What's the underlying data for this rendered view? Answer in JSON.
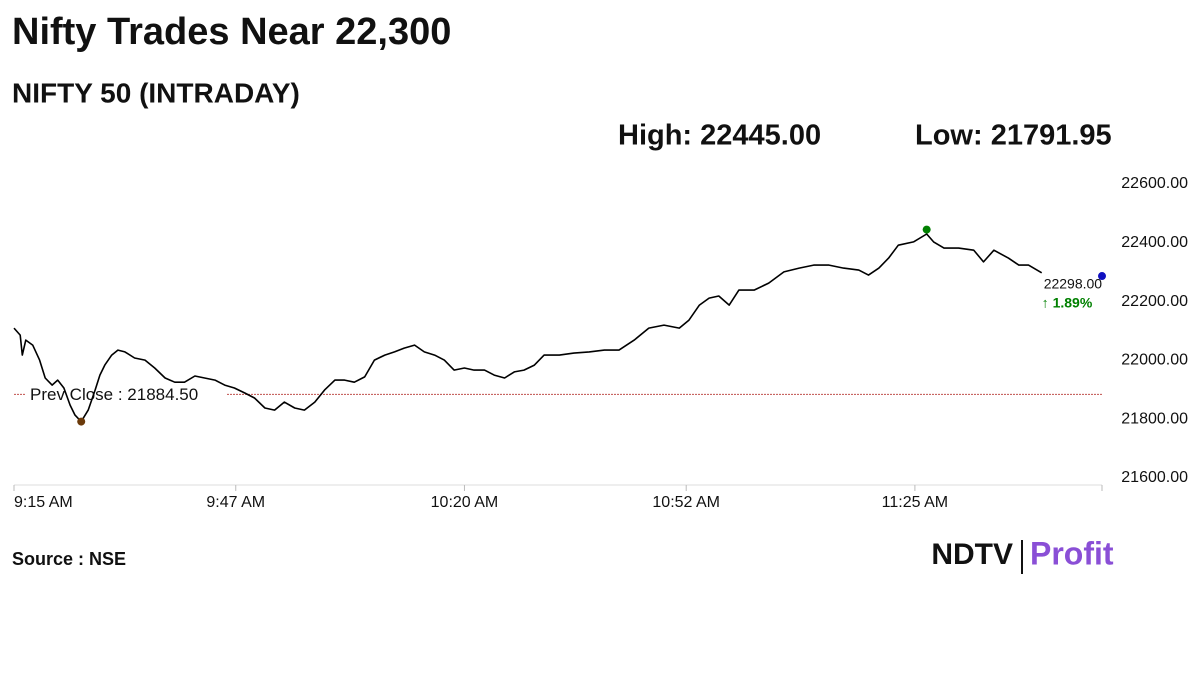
{
  "chart_data": {
    "type": "line",
    "title": "Nifty Trades Near 22,300",
    "subtitle": "NIFTY 50 (INTRADAY)",
    "high_label": "High: 22445.00",
    "low_label": "Low: 21791.95",
    "source": "Source : NSE",
    "logo": {
      "left": "NDTV",
      "right": "Profit"
    },
    "series": [
      {
        "name": "NIFTY 50",
        "color": "#000000",
        "x": [
          555.0,
          555.9,
          556.2,
          556.7,
          557.7,
          558.7,
          559.5,
          560.5,
          561.3,
          562.2,
          563.1,
          563.8,
          564.7,
          565.7,
          566.7,
          567.4,
          568.1,
          569.1,
          570.0,
          571.0,
          572.4,
          573.9,
          575.3,
          576.8,
          578.2,
          579.6,
          581.1,
          582.5,
          584.0,
          585.4,
          586.8,
          588.3,
          589.7,
          591.2,
          592.6,
          594.0,
          595.5,
          596.9,
          598.4,
          599.8,
          601.3,
          602.7,
          604.1,
          605.6,
          607.0,
          608.5,
          609.9,
          611.3,
          612.8,
          614.2,
          615.7,
          617.1,
          618.5,
          620.0,
          621.4,
          622.9,
          624.3,
          625.8,
          627.2,
          628.6,
          630.1,
          631.5,
          633.7,
          635.8,
          638.0,
          640.2,
          642.3,
          644.5,
          646.6,
          648.8,
          651.0,
          652.4,
          653.9,
          655.3,
          656.7,
          658.2,
          659.6,
          661.8,
          663.9,
          666.1,
          668.3,
          670.4,
          672.6,
          674.7,
          676.9,
          678.3,
          679.8,
          681.2,
          682.6,
          684.8,
          686.7,
          687.7,
          689.2,
          691.3,
          693.5,
          694.9,
          696.4,
          698.5,
          700.0,
          701.4,
          703.3
        ],
        "values": [
          22110,
          22086,
          22018,
          22069,
          22052,
          22001,
          21940,
          21916,
          21933,
          21906,
          21848,
          21814,
          21792,
          21831,
          21899,
          21950,
          21984,
          22018,
          22035,
          22029,
          22008,
          22001,
          21974,
          21940,
          21926,
          21926,
          21947,
          21940,
          21933,
          21916,
          21906,
          21889,
          21872,
          21838,
          21831,
          21858,
          21838,
          21831,
          21858,
          21899,
          21933,
          21933,
          21926,
          21944,
          22001,
          22018,
          22029,
          22042,
          22052,
          22029,
          22018,
          22001,
          21967,
          21974,
          21967,
          21967,
          21950,
          21940,
          21961,
          21967,
          21984,
          22018,
          22018,
          22025,
          22029,
          22035,
          22035,
          22069,
          22110,
          22120,
          22110,
          22137,
          22188,
          22212,
          22219,
          22188,
          22239,
          22239,
          22263,
          22301,
          22314,
          22324,
          22324,
          22314,
          22307,
          22290,
          22314,
          22348,
          22392,
          22403,
          22430,
          22403,
          22382,
          22382,
          22375,
          22335,
          22375,
          22348,
          22324,
          22324,
          22298
        ]
      }
    ],
    "markers": [
      {
        "x": 686.7,
        "y": 22445,
        "color": "#008000"
      },
      {
        "x": 564.7,
        "y": 21791.95,
        "color": "#6b3a0a"
      },
      {
        "x": 712,
        "y": 22287,
        "color": "#1010c0"
      }
    ],
    "reference_line": {
      "value": 21884.5,
      "label": "Prev Close : 21884.50",
      "color": "#c0504d"
    },
    "last_label": "22298.00",
    "change_label": "↑ 1.89%",
    "change_color": "#008000",
    "xlim": [
      555,
      712
    ],
    "xticks": [
      {
        "value": 555,
        "label": "9:15 AM"
      },
      {
        "value": 587,
        "label": "9:47 AM"
      },
      {
        "value": 620,
        "label": "10:20 AM"
      },
      {
        "value": 652,
        "label": "10:52 AM"
      },
      {
        "value": 685,
        "label": "11:25 AM"
      }
    ],
    "ylim": [
      21600,
      22600
    ],
    "yticks": [
      {
        "value": 21600,
        "label": "21600.00"
      },
      {
        "value": 21800,
        "label": "21800.00"
      },
      {
        "value": 22000,
        "label": "22000.00"
      },
      {
        "value": 22200,
        "label": "22200.00"
      },
      {
        "value": 22400,
        "label": "22400.00"
      },
      {
        "value": 22600,
        "label": "22600.00"
      }
    ]
  }
}
